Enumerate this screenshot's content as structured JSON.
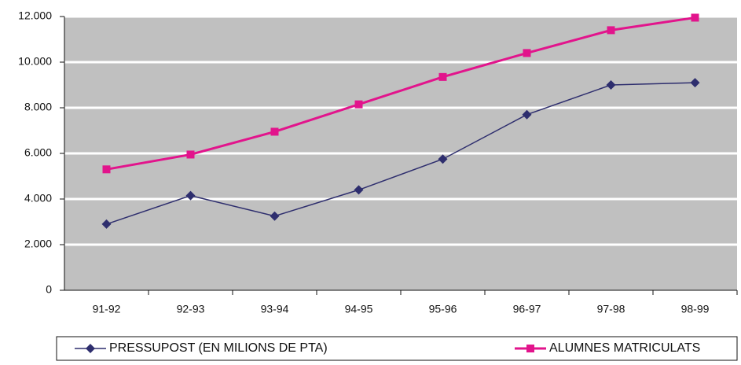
{
  "chart_data": {
    "type": "line",
    "categories": [
      "91-92",
      "92-93",
      "93-94",
      "94-95",
      "95-96",
      "96-97",
      "97-98",
      "98-99"
    ],
    "series": [
      {
        "name": "PRESSUPOST (EN MILIONS DE PTA)",
        "color": "#2e2e6e",
        "marker": "diamond",
        "values": [
          2900,
          4150,
          3250,
          4400,
          5750,
          7700,
          9000,
          9100
        ]
      },
      {
        "name": "ALUMNES MATRICULATS",
        "color": "#e2148c",
        "marker": "square",
        "values": [
          5300,
          5950,
          6950,
          8150,
          9350,
          10400,
          11400,
          11950
        ]
      }
    ],
    "ylim": [
      0,
      12000
    ],
    "yticks": [
      0,
      {
        "value": 2000,
        "label": "2.000"
      },
      {
        "value": 4000,
        "label": "4.000"
      },
      {
        "value": 6000,
        "label": "6.000"
      },
      {
        "value": 8000,
        "label": "8.000"
      },
      {
        "value": 10000,
        "label": "10.000"
      },
      {
        "value": 12000,
        "label": "12.000"
      }
    ],
    "grid": true,
    "legend": "bottom"
  }
}
